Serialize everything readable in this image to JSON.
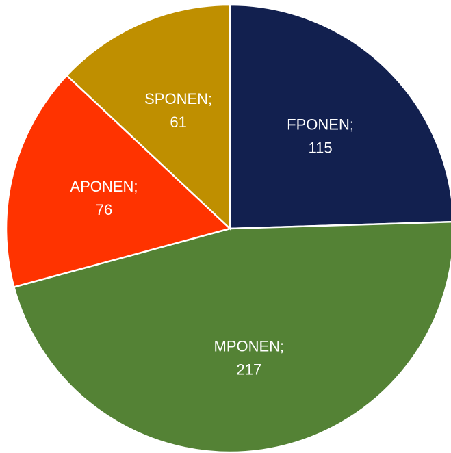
{
  "chart_data": {
    "type": "pie",
    "categories": [
      "FPONEN;",
      "MPONEN;",
      "APONEN;",
      "SPONEN;"
    ],
    "values": [
      115,
      217,
      76,
      61
    ],
    "colors": [
      "#12204f",
      "#548235",
      "#ff3300",
      "#bf8f00"
    ]
  }
}
